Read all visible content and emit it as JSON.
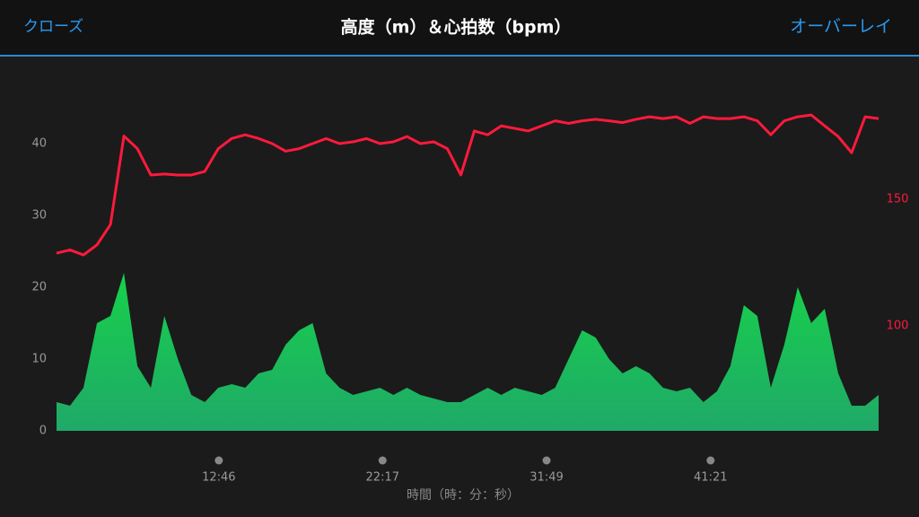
{
  "header": {
    "close": "クローズ",
    "title": "高度（m）＆心拍数（bpm）",
    "overlay": "オーバーレイ"
  },
  "chart_data": {
    "type": "line",
    "x": [
      200,
      247,
      294,
      341,
      388,
      435,
      482,
      529,
      576,
      623,
      670,
      717,
      764,
      811,
      858,
      905,
      952,
      999,
      1046,
      1093,
      1140,
      1187,
      1234,
      1281,
      1328,
      1375,
      1422,
      1469,
      1516,
      1563,
      1610,
      1657,
      1704,
      1751,
      1798,
      1845,
      1892,
      1939,
      1986,
      2033,
      2080,
      2127,
      2174,
      2221,
      2268,
      2315,
      2362,
      2409,
      2456,
      2503,
      2550,
      2597,
      2644,
      2691,
      2738,
      2785,
      2832,
      2879,
      2926,
      2973,
      3020,
      3067
    ],
    "xlim": [
      200,
      3067
    ],
    "xticks": [
      {
        "value": 766,
        "label": "12:46"
      },
      {
        "value": 1337,
        "label": "22:17"
      },
      {
        "value": 1909,
        "label": "31:49"
      },
      {
        "value": 2481,
        "label": "41:21"
      }
    ],
    "xlabel": "時間（時：分：秒）",
    "ylim": [
      0,
      48
    ],
    "yticks": [
      0,
      10,
      20,
      30,
      40
    ],
    "y2lim": [
      58.5,
      194.7
    ],
    "y2ticks": [
      100,
      150
    ],
    "series": [
      {
        "type": "area",
        "color": "#1fc45a",
        "values": [
          4,
          3.5,
          6,
          15,
          16,
          22,
          9,
          6,
          16,
          10,
          5,
          4,
          6,
          6.5,
          6,
          8,
          8.5,
          12,
          14,
          15,
          8,
          6,
          5,
          5.5,
          6,
          5,
          6,
          5,
          4.5,
          4,
          4,
          5,
          6,
          5,
          6,
          5.5,
          5,
          6,
          10,
          14,
          13,
          10,
          8,
          9,
          8,
          6,
          5.5,
          6,
          4,
          5.5,
          9,
          17.5,
          16,
          6,
          12,
          20,
          15,
          17,
          8,
          3.5,
          3.5,
          5
        ]
      },
      {
        "type": "line",
        "axis": "y2",
        "color": "#ff1a3c",
        "values": [
          128.7,
          130,
          128,
          132,
          140,
          175,
          170,
          159.6,
          160,
          159.6,
          159.6,
          161,
          170,
          174,
          175.5,
          174,
          172,
          169,
          170,
          172,
          174,
          172,
          172.7,
          174,
          172,
          172.7,
          174.8,
          172,
          172.7,
          170,
          159.6,
          177,
          175.5,
          179,
          178,
          177,
          179,
          181,
          180,
          181,
          181.6,
          181,
          180.3,
          181.6,
          182.6,
          181.9,
          182.6,
          180,
          182.6,
          181.9,
          181.9,
          182.6,
          181,
          175.5,
          181,
          182.6,
          183.3,
          179,
          174.8,
          168.4,
          182.6,
          181.9
        ]
      }
    ]
  }
}
